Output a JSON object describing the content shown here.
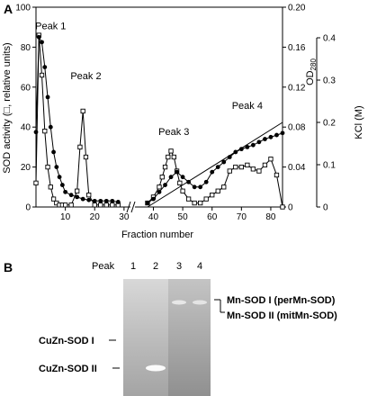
{
  "panel_a": {
    "label": "A",
    "chart_data": {
      "type": "line",
      "xlabel": "Fraction number",
      "ylabel": "SOD activity (□, relative units)",
      "y2label": "OD",
      "y2label_sub": "280",
      "y3label": "KCl (M)",
      "xlim": [
        0,
        84
      ],
      "ylim": [
        0,
        100
      ],
      "y2lim": [
        0,
        0.2
      ],
      "y3lim": [
        0,
        0.4
      ],
      "x_ticks": [
        10,
        20,
        30,
        40,
        50,
        60,
        70,
        80
      ],
      "y_ticks": [
        0,
        20,
        40,
        60,
        80,
        100
      ],
      "y2_ticks": [
        0,
        0.04,
        0.08,
        0.12,
        0.16,
        0.2
      ],
      "y2_tick_labels": [
        "0",
        "0.04",
        "0.08",
        "0.12",
        "0.16",
        "0.20"
      ],
      "y3_ticks": [
        0,
        0.1,
        0.2,
        0.3,
        0.4
      ],
      "axis_break_between": [
        28,
        38
      ],
      "annotations": [
        {
          "text": "Peak 1",
          "x": 5,
          "y": 89
        },
        {
          "text": "Peak 2",
          "x": 17,
          "y": 64
        },
        {
          "text": "Peak 3",
          "x": 47,
          "y": 36
        },
        {
          "text": "Peak 4",
          "x": 72,
          "y": 49
        }
      ],
      "series": [
        {
          "marker": "open-square",
          "axis": "y",
          "x": [
            0,
            1,
            2,
            3,
            4,
            5,
            6,
            7,
            8,
            9,
            10,
            12,
            14,
            15,
            16,
            17,
            18,
            20,
            22,
            24,
            26,
            28,
            38,
            40,
            42,
            43,
            44,
            45,
            46,
            47,
            48,
            49,
            50,
            52,
            54,
            56,
            58,
            60,
            62,
            64,
            66,
            68,
            70,
            72,
            74,
            76,
            78,
            80,
            82,
            84
          ],
          "values": [
            12,
            86,
            66,
            38,
            20,
            10,
            4,
            2,
            1,
            1,
            1,
            1,
            8,
            30,
            48,
            25,
            6,
            1,
            1,
            1,
            1,
            1,
            2,
            5,
            10,
            15,
            20,
            25,
            28,
            25,
            18,
            12,
            8,
            4,
            2,
            2,
            4,
            6,
            8,
            10,
            18,
            20,
            20,
            21,
            19,
            18,
            21,
            24,
            16,
            0
          ]
        },
        {
          "marker": "filled-circle",
          "axis": "y2",
          "x": [
            0,
            1,
            2,
            3,
            4,
            5,
            6,
            7,
            8,
            9,
            10,
            12,
            14,
            16,
            18,
            20,
            22,
            24,
            26,
            28,
            38,
            40,
            42,
            44,
            46,
            48,
            50,
            52,
            54,
            56,
            58,
            60,
            62,
            64,
            66,
            68,
            70,
            72,
            74,
            76,
            78,
            80,
            82,
            84
          ],
          "values": [
            0.075,
            0.17,
            0.165,
            0.14,
            0.11,
            0.08,
            0.055,
            0.04,
            0.03,
            0.022,
            0.015,
            0.012,
            0.01,
            0.008,
            0.007,
            0.006,
            0.006,
            0.006,
            0.006,
            0.005,
            0.004,
            0.008,
            0.015,
            0.022,
            0.03,
            0.035,
            0.03,
            0.025,
            0.02,
            0.02,
            0.025,
            0.035,
            0.04,
            0.045,
            0.05,
            0.055,
            0.058,
            0.06,
            0.062,
            0.065,
            0.068,
            0.07,
            0.072,
            0.074
          ]
        },
        {
          "marker": "none",
          "axis": "y3",
          "x": [
            38,
            84
          ],
          "values": [
            0,
            0.2
          ]
        }
      ]
    }
  },
  "panel_b": {
    "label": "B",
    "lane_heading": "Peak",
    "lanes": [
      "1",
      "2",
      "3",
      "4"
    ],
    "bands": [
      {
        "lane": "2",
        "name": "CuZn-SOD II",
        "intensity": 1.0
      },
      {
        "lane": "3",
        "name": "Mn-SOD",
        "intensity": 0.6
      },
      {
        "lane": "4",
        "name": "Mn-SOD",
        "intensity": 0.55
      }
    ],
    "left_labels": [
      "CuZn-SOD I",
      "CuZn-SOD II"
    ],
    "right_labels": [
      "Mn-SOD I (perMn-SOD)",
      "Mn-SOD II (mitMn-SOD)"
    ]
  }
}
